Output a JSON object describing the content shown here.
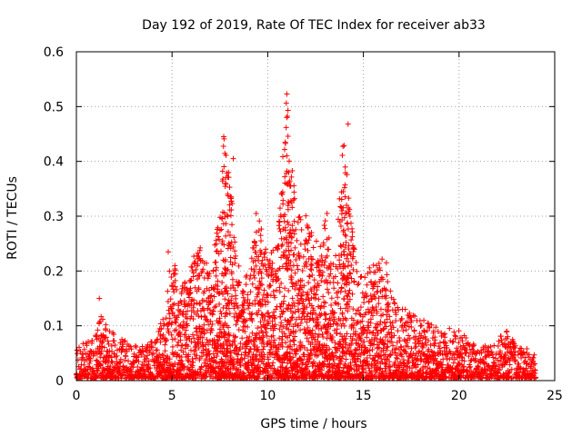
{
  "chart_data": {
    "type": "scatter",
    "title": "Day 192 of 2019, Rate Of TEC Index for receiver ab33",
    "xlabel": "GPS time / hours",
    "ylabel": "ROTI / TECUs",
    "xlim": [
      0,
      25
    ],
    "ylim": [
      0,
      0.6
    ],
    "xticks": [
      "0",
      "5",
      "10",
      "15",
      "20",
      "25"
    ],
    "yticks": [
      "0",
      "0.1",
      "0.2",
      "0.3",
      "0.4",
      "0.5",
      "0.6"
    ],
    "grid": true,
    "marker": "plus",
    "color": "#ff0000",
    "envelope_hours": [
      0,
      0.5,
      1,
      1.3,
      1.5,
      2,
      2.5,
      3,
      3.5,
      4,
      4.5,
      5,
      5.5,
      6,
      6.5,
      7,
      7.5,
      7.7,
      8,
      8.3,
      8.6,
      9,
      9.5,
      10,
      10.5,
      11,
      11.5,
      12,
      12.5,
      13,
      13.5,
      14,
      14.3,
      14.7,
      15,
      15.5,
      16,
      16.5,
      17,
      17.5,
      18,
      18.5,
      19,
      19.5,
      20,
      20.5,
      21,
      21.5,
      22,
      22.5,
      23,
      23.5,
      24
    ],
    "envelope_max_roti": [
      0.06,
      0.07,
      0.08,
      0.15,
      0.1,
      0.08,
      0.07,
      0.06,
      0.06,
      0.07,
      0.11,
      0.23,
      0.17,
      0.22,
      0.24,
      0.2,
      0.3,
      0.44,
      0.4,
      0.26,
      0.18,
      0.2,
      0.3,
      0.22,
      0.25,
      0.52,
      0.3,
      0.3,
      0.25,
      0.3,
      0.2,
      0.47,
      0.3,
      0.2,
      0.19,
      0.21,
      0.22,
      0.16,
      0.13,
      0.12,
      0.11,
      0.1,
      0.09,
      0.08,
      0.09,
      0.07,
      0.06,
      0.06,
      0.07,
      0.09,
      0.06,
      0.06,
      0.04
    ],
    "peak_points": [
      {
        "x": 11.0,
        "y": 0.523
      },
      {
        "x": 11.0,
        "y": 0.48
      },
      {
        "x": 14.2,
        "y": 0.468
      },
      {
        "x": 7.7,
        "y": 0.445
      },
      {
        "x": 11.0,
        "y": 0.41
      },
      {
        "x": 8.2,
        "y": 0.405
      },
      {
        "x": 11.1,
        "y": 0.38
      },
      {
        "x": 7.8,
        "y": 0.36
      },
      {
        "x": 11.2,
        "y": 0.355
      },
      {
        "x": 13.1,
        "y": 0.305
      },
      {
        "x": 9.4,
        "y": 0.305
      },
      {
        "x": 14.3,
        "y": 0.3
      },
      {
        "x": 4.8,
        "y": 0.235
      },
      {
        "x": 16.2,
        "y": 0.215
      },
      {
        "x": 1.2,
        "y": 0.15
      },
      {
        "x": 19.5,
        "y": 0.095
      },
      {
        "x": 22.5,
        "y": 0.09
      }
    ]
  }
}
